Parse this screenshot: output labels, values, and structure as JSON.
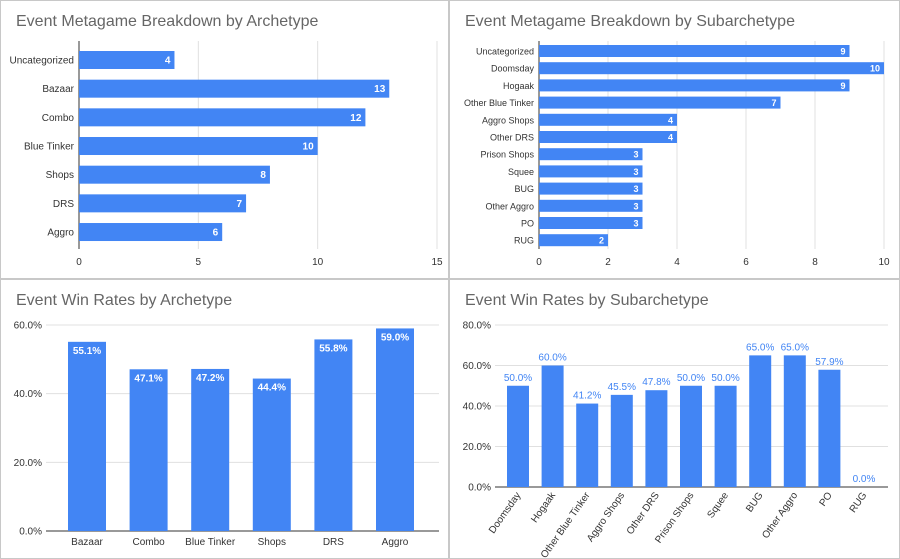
{
  "colors": {
    "bar": "#4285f4",
    "grid": "#e0e0e0",
    "axis": "#333333",
    "label_inside": "#ffffff",
    "label_outside": "#4285f4"
  },
  "chart_data": [
    {
      "id": "archetype-breakdown",
      "type": "bar",
      "orientation": "horizontal",
      "title": "Event Metagame Breakdown by Archetype",
      "categories": [
        "Uncategorized",
        "Bazaar",
        "Combo",
        "Blue Tinker",
        "Shops",
        "DRS",
        "Aggro"
      ],
      "values": [
        4,
        13,
        12,
        10,
        8,
        7,
        6
      ],
      "xlim": [
        0,
        15
      ],
      "ticks": [
        0,
        5,
        10,
        15
      ],
      "grid": true,
      "legend": "none"
    },
    {
      "id": "subarchetype-breakdown",
      "type": "bar",
      "orientation": "horizontal",
      "title": "Event Metagame Breakdown by Subarchetype",
      "categories": [
        "Uncategorized",
        "Doomsday",
        "Hogaak",
        "Other Blue Tinker",
        "Aggro Shops",
        "Other DRS",
        "Prison Shops",
        "Squee",
        "BUG",
        "Other Aggro",
        "PO",
        "RUG"
      ],
      "values": [
        9,
        10,
        9,
        7,
        4,
        4,
        3,
        3,
        3,
        3,
        3,
        2
      ],
      "xlim": [
        0,
        10
      ],
      "ticks": [
        0,
        2,
        4,
        6,
        8,
        10
      ],
      "grid": true,
      "legend": "none"
    },
    {
      "id": "archetype-winrates",
      "type": "bar",
      "orientation": "vertical",
      "title": "Event Win Rates by Archetype",
      "categories": [
        "Bazaar",
        "Combo",
        "Blue Tinker",
        "Shops",
        "DRS",
        "Aggro"
      ],
      "values": [
        55.1,
        47.1,
        47.2,
        44.4,
        55.8,
        59.0
      ],
      "value_labels": [
        "55.1%",
        "47.1%",
        "47.2%",
        "44.4%",
        "55.8%",
        "59.0%"
      ],
      "ylim": [
        0,
        60
      ],
      "ticks": [
        0,
        20,
        40,
        60
      ],
      "tick_labels": [
        "0.0%",
        "20.0%",
        "40.0%",
        "60.0%"
      ],
      "grid": true,
      "legend": "none"
    },
    {
      "id": "subarchetype-winrates",
      "type": "bar",
      "orientation": "vertical",
      "title": "Event Win Rates by Subarchetype",
      "categories": [
        "Doomsday",
        "Hogaak",
        "Other Blue Tinker",
        "Aggro Shops",
        "Other DRS",
        "Prison Shops",
        "Squee",
        "BUG",
        "Other Aggro",
        "PO",
        "RUG"
      ],
      "values": [
        50.0,
        60.0,
        41.2,
        45.5,
        47.8,
        50.0,
        50.0,
        65.0,
        65.0,
        57.9,
        0.0
      ],
      "value_labels": [
        "50.0%",
        "60.0%",
        "41.2%",
        "45.5%",
        "47.8%",
        "50.0%",
        "50.0%",
        "65.0%",
        "65.0%",
        "57.9%",
        "0.0%"
      ],
      "ylim": [
        0,
        80
      ],
      "ticks": [
        0,
        20,
        40,
        60,
        80
      ],
      "tick_labels": [
        "0.0%",
        "20.0%",
        "40.0%",
        "60.0%",
        "80.0%"
      ],
      "grid": true,
      "legend": "none"
    }
  ]
}
